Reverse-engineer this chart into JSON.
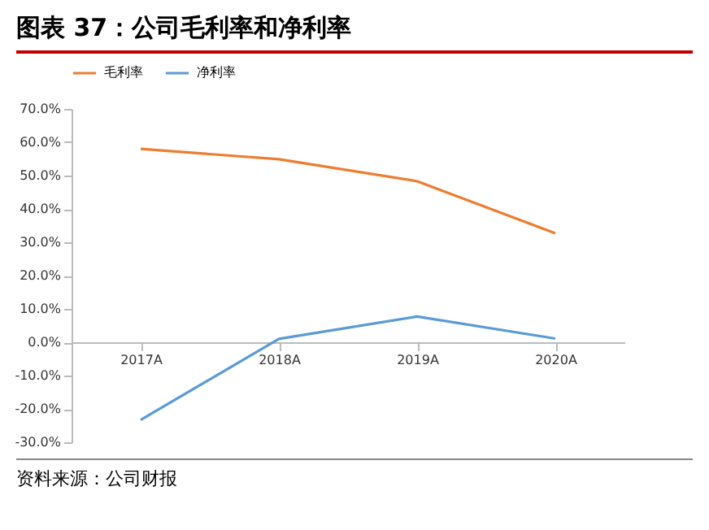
{
  "chart_data": {
    "type": "line",
    "title": "图表 37：公司毛利率和净利率",
    "categories": [
      "2017A",
      "2018A",
      "2019A",
      "2020A"
    ],
    "series": [
      {
        "name": "毛利率",
        "color": "#ed7d31",
        "values": [
          58.0,
          54.9,
          48.3,
          32.7
        ]
      },
      {
        "name": "净利率",
        "color": "#5b9bd5",
        "values": [
          -23.3,
          1.0,
          7.7,
          1.1
        ]
      }
    ],
    "ylim": [
      -30,
      70
    ],
    "yticks": [
      {
        "value": -30,
        "label": "-30.0%"
      },
      {
        "value": -20,
        "label": "-20.0%"
      },
      {
        "value": -10,
        "label": "-10.0%"
      },
      {
        "value": 0,
        "label": "0.0%"
      },
      {
        "value": 10,
        "label": "10.0%"
      },
      {
        "value": 20,
        "label": "20.0%"
      },
      {
        "value": 30,
        "label": "30.0%"
      },
      {
        "value": 40,
        "label": "40.0%"
      },
      {
        "value": 50,
        "label": "50.0%"
      },
      {
        "value": 60,
        "label": "60.0%"
      },
      {
        "value": 70,
        "label": "70.0%"
      }
    ],
    "legend": "top",
    "grid": false,
    "marker": "none",
    "line_style": "solid",
    "annotations": [
      "资料来源：公司财报"
    ]
  }
}
